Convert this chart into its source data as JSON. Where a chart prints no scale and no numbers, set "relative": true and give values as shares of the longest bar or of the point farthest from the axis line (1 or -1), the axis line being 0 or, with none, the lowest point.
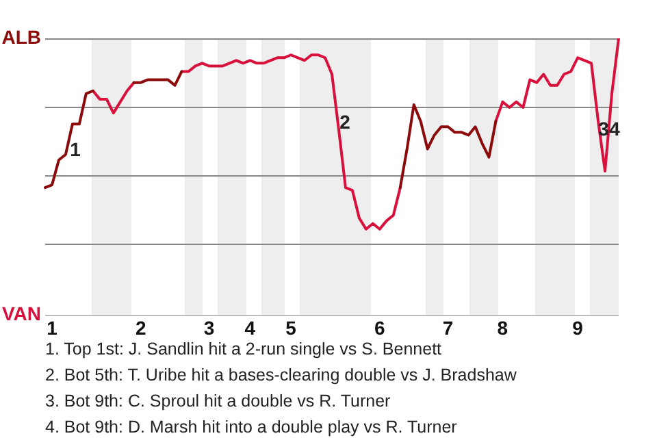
{
  "chart_data": {
    "type": "line",
    "relative": true,
    "categories": [
      null,
      "1",
      null,
      null,
      null,
      null,
      null,
      null,
      null,
      null,
      null,
      null,
      null,
      null,
      "2",
      null,
      null,
      null,
      null,
      null,
      null,
      null,
      null,
      null,
      "3",
      null,
      null,
      null,
      null,
      null,
      "4",
      null,
      null,
      null,
      null,
      null,
      "5",
      null,
      null,
      null,
      null,
      null,
      null,
      null,
      null,
      null,
      null,
      null,
      null,
      "6",
      null,
      null,
      null,
      null,
      null,
      null,
      null,
      null,
      null,
      "7",
      null,
      null,
      null,
      null,
      null,
      null,
      null,
      "8",
      null,
      null,
      null,
      null,
      null,
      null,
      null,
      null,
      null,
      null,
      "9",
      null,
      null,
      null,
      null,
      null,
      null
    ],
    "series": [
      {
        "name": "ALB",
        "color": "#8b0a0a",
        "values": [
          0.46,
          0.47,
          0.56,
          0.58,
          0.69,
          0.69,
          0.8,
          0.81,
          null,
          null,
          null,
          null,
          null,
          0.84,
          0.84,
          0.85,
          0.85,
          0.85,
          0.85,
          0.83,
          0.88,
          null,
          null,
          null,
          null,
          null,
          null,
          null,
          null,
          null,
          null,
          null,
          null,
          null,
          null,
          null,
          null,
          null,
          null,
          null,
          null,
          null,
          null,
          null,
          null,
          null,
          null,
          null,
          null,
          null,
          null,
          null,
          0.46,
          0.6,
          0.76,
          0.7,
          0.6,
          0.65,
          0.68,
          0.68,
          0.66,
          0.66,
          0.65,
          0.68,
          0.62,
          0.57,
          0.7,
          null,
          null,
          null,
          null,
          null,
          null,
          null,
          null,
          null,
          null,
          null,
          null,
          null,
          null,
          null,
          null,
          null,
          null
        ]
      },
      {
        "name": "VAN",
        "color": "#d7103c",
        "values": [
          null,
          null,
          null,
          null,
          null,
          null,
          null,
          0.81,
          0.78,
          0.78,
          0.73,
          0.77,
          0.81,
          0.84,
          null,
          null,
          null,
          null,
          null,
          null,
          0.88,
          0.88,
          0.9,
          0.91,
          0.9,
          0.9,
          0.9,
          0.91,
          0.92,
          0.91,
          0.92,
          0.91,
          0.91,
          0.92,
          0.93,
          0.93,
          0.94,
          0.93,
          0.92,
          0.94,
          0.94,
          0.93,
          0.87,
          0.67,
          0.46,
          0.45,
          0.35,
          0.31,
          0.33,
          0.31,
          0.34,
          0.36,
          0.46,
          null,
          null,
          null,
          null,
          null,
          null,
          null,
          null,
          null,
          null,
          null,
          null,
          null,
          0.7,
          0.77,
          0.75,
          0.77,
          0.75,
          0.85,
          0.84,
          0.87,
          0.83,
          0.83,
          0.87,
          0.88,
          0.93,
          0.92,
          0.91,
          0.7,
          0.52,
          0.8,
          1
        ]
      }
    ],
    "marker": "none",
    "line_style": "solid",
    "annotations": [
      "1",
      "2",
      "3",
      "4",
      "1. Top 1st: J. Sandlin hit a 2-run single vs S. Bennett",
      "2. Bot 5th: T. Uribe hit a bases-clearing double vs J. Bradshaw",
      "3. Bot 9th: C. Sproul hit a double vs R. Turner",
      "4. Bot 9th: D. Marsh hit into a double play vs R. Turner"
    ]
  }
}
